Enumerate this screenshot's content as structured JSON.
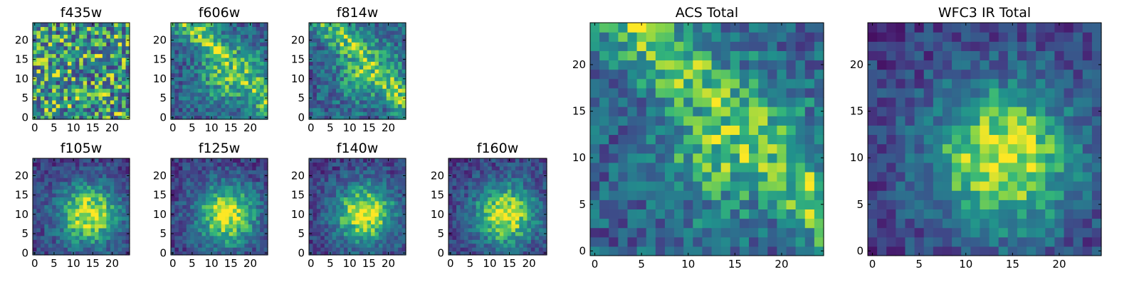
{
  "colormap": "viridis",
  "chart_data": [
    {
      "type": "heatmap",
      "title": "f435w",
      "size": 25,
      "pattern": "noise",
      "xticks": [
        0,
        5,
        10,
        15,
        20
      ],
      "yticks": [
        0,
        5,
        10,
        15,
        20
      ],
      "xticklabels": [
        "0",
        "5",
        "10",
        "15",
        "20"
      ],
      "yticklabels": [
        "0",
        "5",
        "10",
        "15",
        "20"
      ]
    },
    {
      "type": "heatmap",
      "title": "f606w",
      "size": 25,
      "pattern": "diagonal",
      "xticks": [
        0,
        5,
        10,
        15,
        20
      ],
      "yticks": [
        0,
        5,
        10,
        15,
        20
      ],
      "xticklabels": [
        "0",
        "5",
        "10",
        "15",
        "20"
      ],
      "yticklabels": [
        "0",
        "5",
        "10",
        "15",
        "20"
      ]
    },
    {
      "type": "heatmap",
      "title": "f814w",
      "size": 25,
      "pattern": "diagonal",
      "xticks": [
        0,
        5,
        10,
        15,
        20
      ],
      "yticks": [
        0,
        5,
        10,
        15,
        20
      ],
      "xticklabels": [
        "0",
        "5",
        "10",
        "15",
        "20"
      ],
      "yticklabels": [
        "0",
        "5",
        "10",
        "15",
        "20"
      ]
    },
    {
      "type": "heatmap",
      "title": "f105w",
      "size": 25,
      "pattern": "blob",
      "xticks": [
        0,
        5,
        10,
        15,
        20
      ],
      "yticks": [
        0,
        5,
        10,
        15,
        20
      ],
      "xticklabels": [
        "0",
        "5",
        "10",
        "15",
        "20"
      ],
      "yticklabels": [
        "0",
        "5",
        "10",
        "15",
        "20"
      ]
    },
    {
      "type": "heatmap",
      "title": "f125w",
      "size": 25,
      "pattern": "blob",
      "xticks": [
        0,
        5,
        10,
        15,
        20
      ],
      "yticks": [
        0,
        5,
        10,
        15,
        20
      ],
      "xticklabels": [
        "0",
        "5",
        "10",
        "15",
        "20"
      ],
      "yticklabels": [
        "0",
        "5",
        "10",
        "15",
        "20"
      ]
    },
    {
      "type": "heatmap",
      "title": "f140w",
      "size": 25,
      "pattern": "blob",
      "xticks": [
        0,
        5,
        10,
        15,
        20
      ],
      "yticks": [
        0,
        5,
        10,
        15,
        20
      ],
      "xticklabels": [
        "0",
        "5",
        "10",
        "15",
        "20"
      ],
      "yticklabels": [
        "0",
        "5",
        "10",
        "15",
        "20"
      ]
    },
    {
      "type": "heatmap",
      "title": "f160w",
      "size": 25,
      "pattern": "blob",
      "xticks": [
        0,
        5,
        10,
        15,
        20
      ],
      "yticks": [
        0,
        5,
        10,
        15,
        20
      ],
      "xticklabels": [
        "0",
        "5",
        "10",
        "15",
        "20"
      ],
      "yticklabels": [
        "0",
        "5",
        "10",
        "15",
        "20"
      ]
    },
    {
      "type": "heatmap",
      "title": "ACS Total",
      "size": 25,
      "pattern": "diagonal",
      "xticks": [
        0,
        5,
        10,
        15,
        20
      ],
      "yticks": [
        0,
        5,
        10,
        15,
        20
      ],
      "xticklabels": [
        "0",
        "5",
        "10",
        "15",
        "20"
      ],
      "yticklabels": [
        "0",
        "5",
        "10",
        "15",
        "20"
      ]
    },
    {
      "type": "heatmap",
      "title": "WFC3 IR Total",
      "size": 25,
      "pattern": "blob",
      "xticks": [
        0,
        5,
        10,
        15,
        20
      ],
      "yticks": [
        0,
        5,
        10,
        15,
        20
      ],
      "xticklabels": [
        "0",
        "5",
        "10",
        "15",
        "20"
      ],
      "yticklabels": [
        "0",
        "5",
        "10",
        "15",
        "20"
      ]
    }
  ]
}
